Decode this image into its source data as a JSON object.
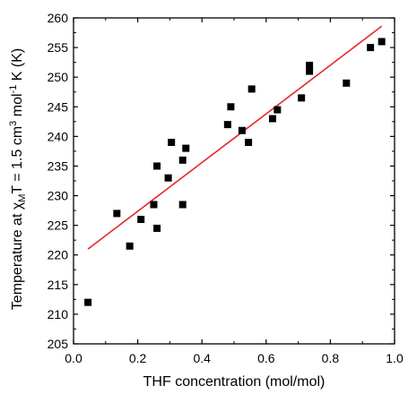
{
  "chart_data": {
    "type": "scatter",
    "xlabel": "THF concentration (mol/mol)",
    "ylabel_parts": [
      "Temperature at ",
      "χ",
      "M",
      "T = 1.5 cm",
      "3",
      " mol",
      "-1",
      " K (K)"
    ],
    "xlim": [
      0.0,
      1.0
    ],
    "ylim": [
      205,
      260
    ],
    "xticks": [
      "0.0",
      "0.2",
      "0.4",
      "0.6",
      "0.8",
      "1.0"
    ],
    "yticks": [
      "205",
      "210",
      "215",
      "220",
      "225",
      "230",
      "235",
      "240",
      "245",
      "250",
      "255",
      "260"
    ],
    "marker_color": "#000000",
    "fit_color": "#e8262a",
    "fit_line": {
      "x": [
        0.045,
        0.96
      ],
      "y": [
        221.0,
        258.6
      ]
    },
    "points": [
      {
        "x": 0.045,
        "y": 212
      },
      {
        "x": 0.135,
        "y": 227
      },
      {
        "x": 0.175,
        "y": 221.5
      },
      {
        "x": 0.21,
        "y": 226
      },
      {
        "x": 0.25,
        "y": 228.5
      },
      {
        "x": 0.26,
        "y": 224.5
      },
      {
        "x": 0.26,
        "y": 235
      },
      {
        "x": 0.295,
        "y": 233
      },
      {
        "x": 0.305,
        "y": 239
      },
      {
        "x": 0.34,
        "y": 236
      },
      {
        "x": 0.34,
        "y": 228.5
      },
      {
        "x": 0.35,
        "y": 238
      },
      {
        "x": 0.48,
        "y": 242
      },
      {
        "x": 0.49,
        "y": 245
      },
      {
        "x": 0.525,
        "y": 241
      },
      {
        "x": 0.545,
        "y": 239
      },
      {
        "x": 0.555,
        "y": 248
      },
      {
        "x": 0.62,
        "y": 243
      },
      {
        "x": 0.635,
        "y": 244.5
      },
      {
        "x": 0.71,
        "y": 246.5
      },
      {
        "x": 0.735,
        "y": 251
      },
      {
        "x": 0.735,
        "y": 252
      },
      {
        "x": 0.85,
        "y": 249
      },
      {
        "x": 0.925,
        "y": 255
      },
      {
        "x": 0.96,
        "y": 256
      }
    ],
    "grid": false
  }
}
